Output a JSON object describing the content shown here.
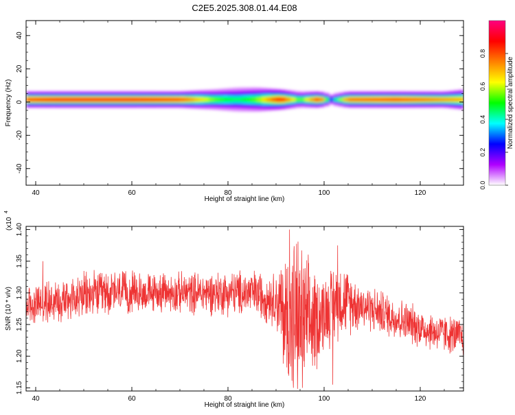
{
  "chart_data": [
    {
      "type": "heatmap",
      "title": "C2E5.2025.308.01.44.E08",
      "xlabel": "Height of straight line (km)",
      "ylabel": "Frequency (Hz)",
      "xlim": [
        38,
        129
      ],
      "ylim": [
        -50,
        49
      ],
      "xticks": [
        40,
        60,
        80,
        100,
        120
      ],
      "yticks": [
        -40,
        -20,
        0,
        20,
        40
      ],
      "band_center_hz": 1.5,
      "intensity_profile": [
        {
          "x": 38.5,
          "width_hz": 4,
          "amplitude": 0.85
        },
        {
          "x": 45,
          "width_hz": 4,
          "amplitude": 0.9
        },
        {
          "x": 60,
          "width_hz": 4,
          "amplitude": 0.9
        },
        {
          "x": 70,
          "width_hz": 4,
          "amplitude": 0.85
        },
        {
          "x": 77,
          "width_hz": 5,
          "amplitude": 0.55
        },
        {
          "x": 82,
          "width_hz": 6,
          "amplitude": 0.45
        },
        {
          "x": 86,
          "width_hz": 6,
          "amplitude": 0.55
        },
        {
          "x": 91,
          "width_hz": 5,
          "amplitude": 0.9
        },
        {
          "x": 95,
          "width_hz": 4,
          "amplitude": 0.5
        },
        {
          "x": 99,
          "width_hz": 4,
          "amplitude": 0.9
        },
        {
          "x": 101.5,
          "width_hz": 3,
          "amplitude": 0.3
        },
        {
          "x": 105,
          "width_hz": 4,
          "amplitude": 0.8
        },
        {
          "x": 115,
          "width_hz": 4,
          "amplitude": 0.85
        },
        {
          "x": 125,
          "width_hz": 4,
          "amplitude": 0.75
        },
        {
          "x": 129,
          "width_hz": 5,
          "amplitude": 0.7
        }
      ],
      "colorbar": {
        "label": "Normalized spectral amplitude",
        "range": [
          0,
          1
        ],
        "ticks": [
          "0.0",
          "0.2",
          "0.4",
          "0.6",
          "0.8"
        ],
        "colors": [
          "#ffffff",
          "#b000ff",
          "#0000ff",
          "#00ffff",
          "#00ff00",
          "#ffff00",
          "#ff8000",
          "#ff0000",
          "#ff0080"
        ]
      }
    },
    {
      "type": "line",
      "xlabel": "Height of straight line (km)",
      "ylabel": "SNR (10 * v/v)",
      "y_multiplier_label": "(x10",
      "y_multiplier_exp": "4",
      "xlim": [
        38,
        129
      ],
      "ylim": [
        1.145,
        1.405
      ],
      "xticks": [
        40,
        60,
        80,
        100,
        120
      ],
      "yticks": [
        "1.15",
        "1.20",
        "1.25",
        "1.30",
        "1.35",
        "1.40"
      ],
      "color": "#ee3333",
      "envelope": [
        {
          "x": 38,
          "mean": 1.28,
          "amp": 0.025
        },
        {
          "x": 45,
          "mean": 1.29,
          "amp": 0.03
        },
        {
          "x": 55,
          "mean": 1.3,
          "amp": 0.03
        },
        {
          "x": 65,
          "mean": 1.3,
          "amp": 0.025
        },
        {
          "x": 75,
          "mean": 1.3,
          "amp": 0.028
        },
        {
          "x": 85,
          "mean": 1.3,
          "amp": 0.03
        },
        {
          "x": 90,
          "mean": 1.29,
          "amp": 0.035
        },
        {
          "x": 92,
          "mean": 1.26,
          "amp": 0.09
        },
        {
          "x": 94,
          "mean": 1.26,
          "amp": 0.11
        },
        {
          "x": 97,
          "mean": 1.25,
          "amp": 0.08
        },
        {
          "x": 100,
          "mean": 1.27,
          "amp": 0.05
        },
        {
          "x": 103,
          "mean": 1.29,
          "amp": 0.05
        },
        {
          "x": 108,
          "mean": 1.28,
          "amp": 0.03
        },
        {
          "x": 115,
          "mean": 1.26,
          "amp": 0.028
        },
        {
          "x": 122,
          "mean": 1.24,
          "amp": 0.025
        },
        {
          "x": 129,
          "mean": 1.23,
          "amp": 0.025
        }
      ],
      "spikes": [
        {
          "x": 41.5,
          "y": 1.35
        },
        {
          "x": 92.8,
          "y": 1.4
        },
        {
          "x": 93.6,
          "y": 1.15
        },
        {
          "x": 95.5,
          "y": 1.15
        },
        {
          "x": 102.8,
          "y": 1.375
        },
        {
          "x": 101.8,
          "y": 1.155
        }
      ]
    }
  ]
}
